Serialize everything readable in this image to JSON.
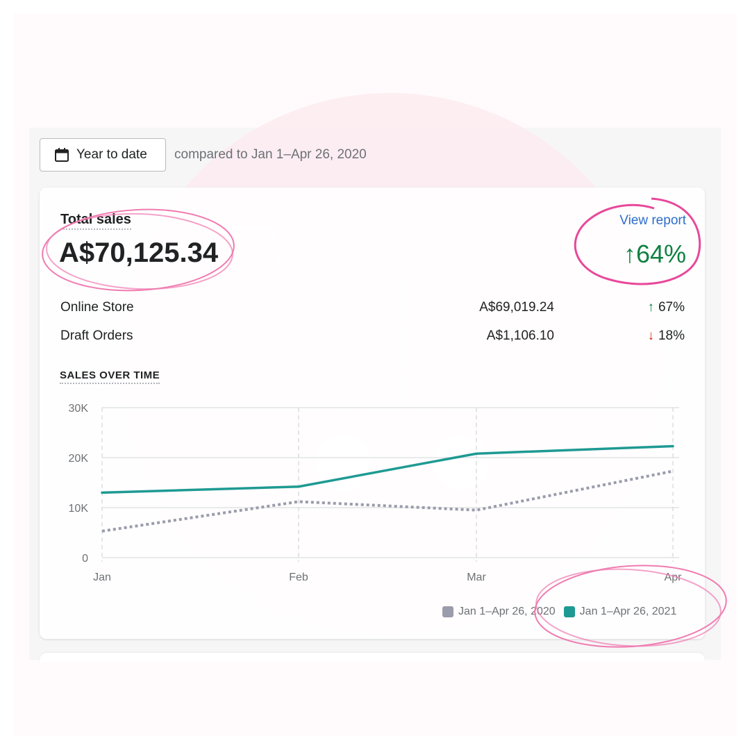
{
  "header": {
    "date_button_label": "Year to date",
    "compare_text": "compared to Jan 1–Apr 26, 2020"
  },
  "card": {
    "title": "Total sales",
    "total_value": "A$70,125.34",
    "view_report_label": "View report",
    "change_arrow": "↑",
    "change_value": "64%",
    "rows": [
      {
        "label": "Online Store",
        "value": "A$69,019.24",
        "arrow": "↑",
        "pct": "67%",
        "direction": "up"
      },
      {
        "label": "Draft Orders",
        "value": "A$1,106.10",
        "arrow": "↓",
        "pct": "18%",
        "direction": "down"
      }
    ],
    "sales_over_time_label": "SALES OVER TIME"
  },
  "colors": {
    "current_series": "#1e9a93",
    "previous_series": "#9a9cac",
    "positive": "#108043",
    "negative": "#d72c0d",
    "link": "#2c6ecb",
    "annotation_pink": "#ee5a9a"
  },
  "icons": {
    "date_button_icon": "calendar-icon"
  },
  "chart_data": {
    "type": "line",
    "categories": [
      "Jan",
      "Feb",
      "Mar",
      "Apr"
    ],
    "y_tick_labels": [
      "0",
      "10K",
      "20K",
      "30K"
    ],
    "y_ticks": [
      0,
      10000,
      20000,
      30000
    ],
    "ylim": [
      0,
      30000
    ],
    "grid": true,
    "legend_position": "bottom-right",
    "series": [
      {
        "name": "Jan 1–Apr 26, 2020",
        "values": [
          5300,
          11200,
          9500,
          17300
        ],
        "style": "dotted",
        "color": "#9a9cac"
      },
      {
        "name": "Jan 1–Apr 26, 2021",
        "values": [
          13000,
          14200,
          20800,
          22300
        ],
        "style": "solid",
        "color": "#1e9a93"
      }
    ]
  }
}
